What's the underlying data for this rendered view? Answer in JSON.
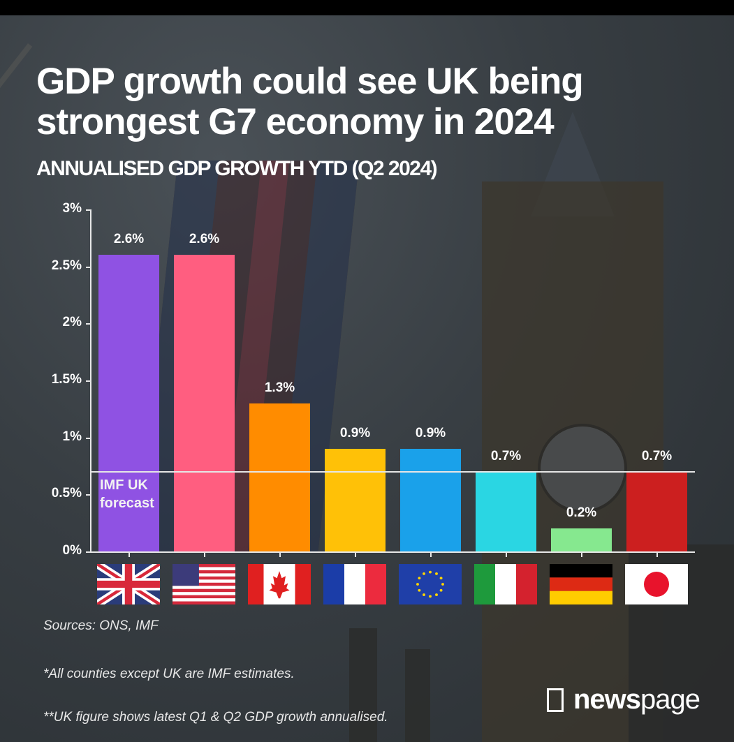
{
  "header": {
    "title_line1": "GDP growth could see UK being",
    "title_line2": "strongest G7 economy in 2024",
    "subtitle": "ANNUALISED GDP GROWTH YTD (Q2 2024)"
  },
  "chart_data": {
    "type": "bar",
    "title": "GDP growth could see UK being strongest G7 economy in 2024",
    "subtitle": "ANNUALISED GDP GROWTH YTD (Q2 2024)",
    "xlabel": "",
    "ylabel": "",
    "ylim": [
      0,
      3
    ],
    "yticks": [
      0,
      0.5,
      1,
      1.5,
      2,
      2.5,
      3
    ],
    "ytick_labels": [
      "0%",
      "0.5%",
      "1%",
      "1.5%",
      "2%",
      "2.5%",
      "3%"
    ],
    "grid": false,
    "categories": [
      "UK",
      "USA",
      "Canada",
      "France",
      "Eurozone",
      "Italy",
      "Germany",
      "Japan"
    ],
    "values": [
      2.6,
      2.6,
      1.3,
      0.9,
      0.9,
      0.7,
      0.2,
      0.7
    ],
    "value_labels": [
      "2.6%",
      "2.6%",
      "1.3%",
      "0.9%",
      "0.9%",
      "0.7%",
      "0.2%",
      "0.7%"
    ],
    "colors": [
      "#8f52e3",
      "#ff5e80",
      "#ff8c00",
      "#ffc107",
      "#1aa1ea",
      "#2ad6e3",
      "#86e88f",
      "#cc1f1f"
    ],
    "category_icons": [
      "uk-flag",
      "us-flag",
      "canada-flag",
      "france-flag",
      "eu-flag",
      "italy-flag",
      "germany-flag",
      "japan-flag"
    ],
    "reference_line": {
      "value": 0.7,
      "label_line1": "IMF UK",
      "label_line2": "forecast"
    }
  },
  "footer": {
    "sources": "Sources: ONS, IMF",
    "note1": "*All counties except UK are IMF estimates.",
    "note2": "**UK figure shows latest Q1 & Q2 GDP growth annualised.",
    "logo_bold": "news",
    "logo_light": "page"
  }
}
